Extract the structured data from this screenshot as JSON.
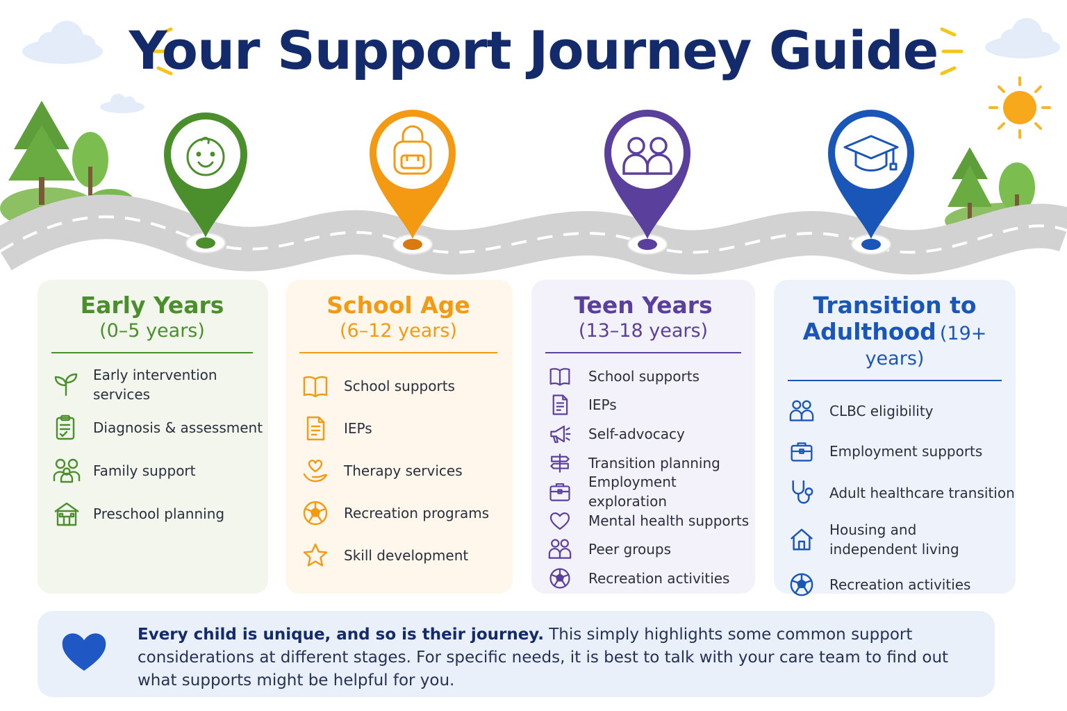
{
  "title": "Your Support Journey Guide",
  "colors": {
    "early": "#4a8f2c",
    "school": "#f39a12",
    "teen": "#5b3f9c",
    "adult": "#1a56b8",
    "title": "#132a6b",
    "heart": "#1f58c4"
  },
  "stages": [
    {
      "title": "Early Years",
      "age": "(0–5 years)",
      "pin_icon": "baby-face-icon",
      "items": [
        {
          "label": "Early intervention services",
          "icon": "sprout-icon"
        },
        {
          "label": "Diagnosis & assessment",
          "icon": "clipboard-icon"
        },
        {
          "label": "Family support",
          "icon": "family-icon"
        },
        {
          "label": "Preschool planning",
          "icon": "school-building-icon"
        }
      ]
    },
    {
      "title": "School Age",
      "age": "(6–12 years)",
      "pin_icon": "backpack-icon",
      "items": [
        {
          "label": "School supports",
          "icon": "book-icon"
        },
        {
          "label": "IEPs",
          "icon": "document-icon"
        },
        {
          "label": "Therapy services",
          "icon": "heart-hand-icon"
        },
        {
          "label": "Recreation programs",
          "icon": "soccer-ball-icon"
        },
        {
          "label": "Skill development",
          "icon": "star-icon"
        }
      ]
    },
    {
      "title": "Teen Years",
      "age": "(13–18 years)",
      "pin_icon": "two-people-icon",
      "items": [
        {
          "label": "School supports",
          "icon": "book-icon"
        },
        {
          "label": "IEPs",
          "icon": "document-icon"
        },
        {
          "label": "Self-advocacy",
          "icon": "megaphone-icon"
        },
        {
          "label": "Transition planning",
          "icon": "signpost-icon"
        },
        {
          "label": "Employment exploration",
          "icon": "briefcase-icon"
        },
        {
          "label": "Mental health supports",
          "icon": "heart-icon"
        },
        {
          "label": "Peer groups",
          "icon": "group-icon"
        },
        {
          "label": "Recreation activities",
          "icon": "soccer-ball-icon"
        }
      ]
    },
    {
      "title": "Transition to",
      "title2": "Adulthood",
      "age": "(19+ years)",
      "pin_icon": "graduation-cap-icon",
      "items": [
        {
          "label": "CLBC eligibility",
          "icon": "group-icon"
        },
        {
          "label": "Employment supports",
          "icon": "briefcase-icon"
        },
        {
          "label": "Adult healthcare transition",
          "icon": "stethoscope-icon"
        },
        {
          "label": "Housing and independent living",
          "icon": "house-icon"
        },
        {
          "label": "Recreation activities",
          "icon": "soccer-ball-icon"
        }
      ]
    }
  ],
  "footer": {
    "bold": "Every child is unique, and so is their journey.",
    "text": " This simply highlights some common support considerations at different stages. For specific needs, it is best to talk with your care team to find out what supports might be helpful for you.",
    "icon": "heart-icon"
  }
}
